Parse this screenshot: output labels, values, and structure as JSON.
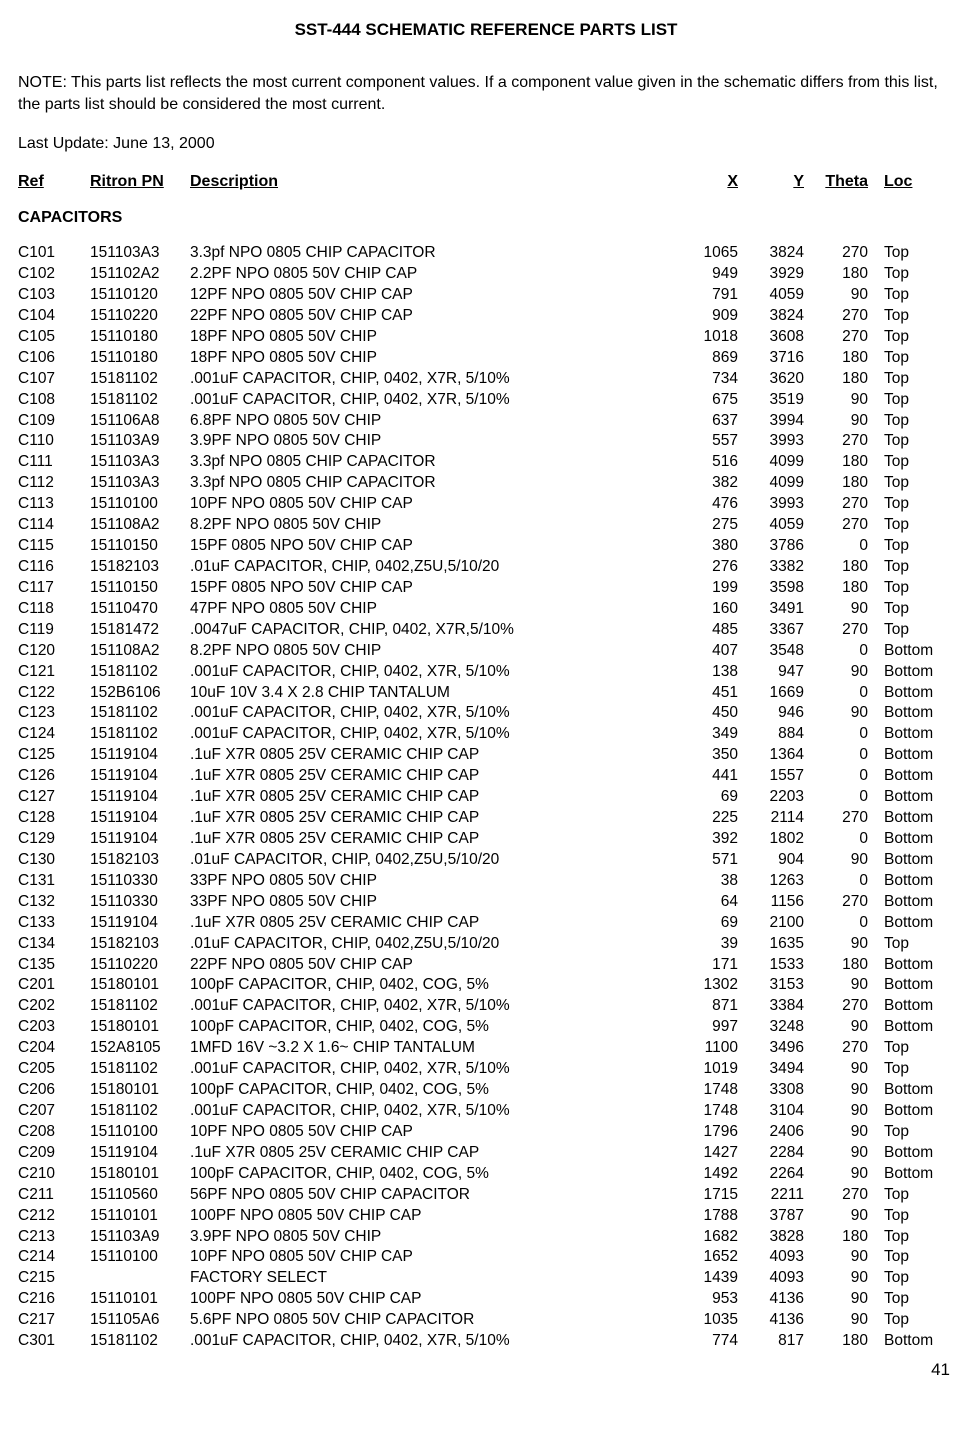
{
  "title": "SST-444 SCHEMATIC REFERENCE PARTS LIST",
  "note": "NOTE:  This parts list reflects the most current component values.  If a component value given in the schematic differs from this list, the parts list should be considered the most current.",
  "last_update": "Last Update: June 13, 2000",
  "headers": {
    "ref": "Ref",
    "pn": "Ritron PN",
    "desc": "Description",
    "x": "X",
    "y": "Y",
    "theta": "Theta",
    "loc": "Loc"
  },
  "section": "CAPACITORS",
  "page_number": "41",
  "rows": [
    {
      "ref": "C101",
      "pn": "151103A3",
      "desc": "3.3pf NPO 0805 CHIP CAPACITOR",
      "x": "1065",
      "y": "3824",
      "theta": "270",
      "loc": "Top"
    },
    {
      "ref": "C102",
      "pn": "151102A2",
      "desc": "2.2PF NPO 0805 50V CHIP CAP",
      "x": "949",
      "y": "3929",
      "theta": "180",
      "loc": "Top"
    },
    {
      "ref": "C103",
      "pn": "15110120",
      "desc": "12PF NPO 0805 50V CHIP CAP",
      "x": "791",
      "y": "4059",
      "theta": "90",
      "loc": "Top"
    },
    {
      "ref": "C104",
      "pn": "15110220",
      "desc": "22PF NPO 0805 50V CHIP CAP",
      "x": "909",
      "y": "3824",
      "theta": "270",
      "loc": "Top"
    },
    {
      "ref": "C105",
      "pn": "15110180",
      "desc": "18PF NPO 0805 50V CHIP",
      "x": "1018",
      "y": "3608",
      "theta": "270",
      "loc": "Top"
    },
    {
      "ref": "C106",
      "pn": "15110180",
      "desc": "18PF NPO 0805 50V CHIP",
      "x": "869",
      "y": "3716",
      "theta": "180",
      "loc": "Top"
    },
    {
      "ref": "C107",
      "pn": "15181102",
      "desc": ".001uF CAPACITOR, CHIP, 0402, X7R, 5/10%",
      "x": "734",
      "y": "3620",
      "theta": "180",
      "loc": "Top"
    },
    {
      "ref": "C108",
      "pn": "15181102",
      "desc": ".001uF CAPACITOR, CHIP, 0402, X7R, 5/10%",
      "x": "675",
      "y": "3519",
      "theta": "90",
      "loc": "Top"
    },
    {
      "ref": "C109",
      "pn": "151106A8",
      "desc": "6.8PF NPO 0805 50V CHIP",
      "x": "637",
      "y": "3994",
      "theta": "90",
      "loc": "Top"
    },
    {
      "ref": "C110",
      "pn": "151103A9",
      "desc": "3.9PF NPO 0805 50V CHIP",
      "x": "557",
      "y": "3993",
      "theta": "270",
      "loc": "Top"
    },
    {
      "ref": "C111",
      "pn": "151103A3",
      "desc": "3.3pf NPO 0805 CHIP CAPACITOR",
      "x": "516",
      "y": "4099",
      "theta": "180",
      "loc": "Top"
    },
    {
      "ref": "C112",
      "pn": "151103A3",
      "desc": "3.3pf NPO 0805 CHIP CAPACITOR",
      "x": "382",
      "y": "4099",
      "theta": "180",
      "loc": "Top"
    },
    {
      "ref": "C113",
      "pn": "15110100",
      "desc": "10PF NPO 0805 50V CHIP CAP",
      "x": "476",
      "y": "3993",
      "theta": "270",
      "loc": "Top"
    },
    {
      "ref": "C114",
      "pn": "151108A2",
      "desc": "8.2PF NPO 0805 50V CHIP",
      "x": "275",
      "y": "4059",
      "theta": "270",
      "loc": "Top"
    },
    {
      "ref": "C115",
      "pn": "15110150",
      "desc": "15PF 0805 NPO 50V CHIP CAP",
      "x": "380",
      "y": "3786",
      "theta": "0",
      "loc": "Top"
    },
    {
      "ref": "C116",
      "pn": "15182103",
      "desc": ".01uF CAPACITOR, CHIP, 0402,Z5U,5/10/20",
      "x": "276",
      "y": "3382",
      "theta": "180",
      "loc": "Top"
    },
    {
      "ref": "C117",
      "pn": "15110150",
      "desc": "15PF 0805 NPO 50V CHIP CAP",
      "x": "199",
      "y": "3598",
      "theta": "180",
      "loc": "Top"
    },
    {
      "ref": "C118",
      "pn": "15110470",
      "desc": "47PF NPO 0805 50V CHIP",
      "x": "160",
      "y": "3491",
      "theta": "90",
      "loc": "Top"
    },
    {
      "ref": "C119",
      "pn": "15181472",
      "desc": ".0047uF CAPACITOR, CHIP, 0402, X7R,5/10%",
      "x": "485",
      "y": "3367",
      "theta": "270",
      "loc": "Top"
    },
    {
      "ref": "C120",
      "pn": "151108A2",
      "desc": "8.2PF NPO 0805 50V CHIP",
      "x": "407",
      "y": "3548",
      "theta": "0",
      "loc": "Bottom"
    },
    {
      "ref": "C121",
      "pn": "15181102",
      "desc": ".001uF CAPACITOR, CHIP, 0402, X7R, 5/10%",
      "x": "138",
      "y": "947",
      "theta": "90",
      "loc": "Bottom"
    },
    {
      "ref": "C122",
      "pn": "152B6106",
      "desc": "10uF 10V 3.4 X 2.8 CHIP TANTALUM",
      "x": "451",
      "y": "1669",
      "theta": "0",
      "loc": "Bottom"
    },
    {
      "ref": "C123",
      "pn": "15181102",
      "desc": ".001uF CAPACITOR, CHIP, 0402, X7R, 5/10%",
      "x": "450",
      "y": "946",
      "theta": "90",
      "loc": "Bottom"
    },
    {
      "ref": "C124",
      "pn": "15181102",
      "desc": ".001uF CAPACITOR, CHIP, 0402, X7R, 5/10%",
      "x": "349",
      "y": "884",
      "theta": "0",
      "loc": "Bottom"
    },
    {
      "ref": "C125",
      "pn": "15119104",
      "desc": ".1uF X7R 0805 25V CERAMIC CHIP CAP",
      "x": "350",
      "y": "1364",
      "theta": "0",
      "loc": "Bottom"
    },
    {
      "ref": "C126",
      "pn": "15119104",
      "desc": ".1uF X7R 0805 25V CERAMIC CHIP CAP",
      "x": "441",
      "y": "1557",
      "theta": "0",
      "loc": "Bottom"
    },
    {
      "ref": "C127",
      "pn": "15119104",
      "desc": ".1uF X7R 0805 25V CERAMIC CHIP CAP",
      "x": "69",
      "y": "2203",
      "theta": "0",
      "loc": "Bottom"
    },
    {
      "ref": "C128",
      "pn": "15119104",
      "desc": ".1uF X7R 0805 25V CERAMIC CHIP CAP",
      "x": "225",
      "y": "2114",
      "theta": "270",
      "loc": "Bottom"
    },
    {
      "ref": "C129",
      "pn": "15119104",
      "desc": ".1uF X7R 0805 25V CERAMIC CHIP CAP",
      "x": "392",
      "y": "1802",
      "theta": "0",
      "loc": "Bottom"
    },
    {
      "ref": "C130",
      "pn": "15182103",
      "desc": ".01uF CAPACITOR, CHIP, 0402,Z5U,5/10/20",
      "x": "571",
      "y": "904",
      "theta": "90",
      "loc": "Bottom"
    },
    {
      "ref": "C131",
      "pn": "15110330",
      "desc": "33PF NPO 0805 50V CHIP",
      "x": "38",
      "y": "1263",
      "theta": "0",
      "loc": "Bottom"
    },
    {
      "ref": "C132",
      "pn": "15110330",
      "desc": "33PF NPO 0805 50V CHIP",
      "x": "64",
      "y": "1156",
      "theta": "270",
      "loc": "Bottom"
    },
    {
      "ref": "C133",
      "pn": "15119104",
      "desc": ".1uF X7R 0805 25V CERAMIC CHIP CAP",
      "x": "69",
      "y": "2100",
      "theta": "0",
      "loc": "Bottom"
    },
    {
      "ref": "C134",
      "pn": "15182103",
      "desc": ".01uF CAPACITOR, CHIP, 0402,Z5U,5/10/20",
      "x": "39",
      "y": "1635",
      "theta": "90",
      "loc": "Top"
    },
    {
      "ref": "C135",
      "pn": "15110220",
      "desc": "22PF NPO 0805 50V CHIP CAP",
      "x": "171",
      "y": "1533",
      "theta": "180",
      "loc": "Bottom"
    },
    {
      "ref": "C201",
      "pn": "15180101",
      "desc": "100pF CAPACITOR, CHIP, 0402, COG, 5%",
      "x": "1302",
      "y": "3153",
      "theta": "90",
      "loc": "Bottom"
    },
    {
      "ref": "C202",
      "pn": "15181102",
      "desc": ".001uF CAPACITOR, CHIP, 0402, X7R, 5/10%",
      "x": "871",
      "y": "3384",
      "theta": "270",
      "loc": "Bottom"
    },
    {
      "ref": "C203",
      "pn": "15180101",
      "desc": "100pF CAPACITOR, CHIP, 0402, COG, 5%",
      "x": "997",
      "y": "3248",
      "theta": "90",
      "loc": "Bottom"
    },
    {
      "ref": "C204",
      "pn": "152A8105",
      "desc": "1MFD 16V ~3.2 X 1.6~ CHIP TANTALUM",
      "x": "1100",
      "y": "3496",
      "theta": "270",
      "loc": "Top"
    },
    {
      "ref": "C205",
      "pn": "15181102",
      "desc": ".001uF CAPACITOR, CHIP, 0402, X7R, 5/10%",
      "x": "1019",
      "y": "3494",
      "theta": "90",
      "loc": "Top"
    },
    {
      "ref": "C206",
      "pn": "15180101",
      "desc": "100pF CAPACITOR, CHIP, 0402, COG, 5%",
      "x": "1748",
      "y": "3308",
      "theta": "90",
      "loc": "Bottom"
    },
    {
      "ref": "C207",
      "pn": "15181102",
      "desc": ".001uF CAPACITOR, CHIP, 0402, X7R, 5/10%",
      "x": "1748",
      "y": "3104",
      "theta": "90",
      "loc": "Bottom"
    },
    {
      "ref": "C208",
      "pn": "15110100",
      "desc": "10PF NPO 0805 50V CHIP CAP",
      "x": "1796",
      "y": "2406",
      "theta": "90",
      "loc": "Top"
    },
    {
      "ref": "C209",
      "pn": "15119104",
      "desc": ".1uF X7R 0805 25V CERAMIC CHIP CAP",
      "x": "1427",
      "y": "2284",
      "theta": "90",
      "loc": "Bottom"
    },
    {
      "ref": "C210",
      "pn": "15180101",
      "desc": "100pF CAPACITOR, CHIP, 0402, COG, 5%",
      "x": "1492",
      "y": "2264",
      "theta": "90",
      "loc": "Bottom"
    },
    {
      "ref": "C211",
      "pn": "15110560",
      "desc": "56PF NPO 0805 50V CHIP CAPACITOR",
      "x": "1715",
      "y": "2211",
      "theta": "270",
      "loc": "Top"
    },
    {
      "ref": "C212",
      "pn": "15110101",
      "desc": "100PF NPO 0805 50V CHIP CAP",
      "x": "1788",
      "y": "3787",
      "theta": "90",
      "loc": "Top"
    },
    {
      "ref": "C213",
      "pn": "151103A9",
      "desc": "3.9PF NPO 0805 50V CHIP",
      "x": "1682",
      "y": "3828",
      "theta": "180",
      "loc": "Top"
    },
    {
      "ref": "C214",
      "pn": "15110100",
      "desc": "10PF NPO 0805 50V CHIP CAP",
      "x": "1652",
      "y": "4093",
      "theta": "90",
      "loc": "Top"
    },
    {
      "ref": "C215",
      "pn": "",
      "desc": "FACTORY SELECT",
      "x": "1439",
      "y": "4093",
      "theta": "90",
      "loc": "Top"
    },
    {
      "ref": "C216",
      "pn": "15110101",
      "desc": "100PF NPO 0805 50V CHIP CAP",
      "x": "953",
      "y": "4136",
      "theta": "90",
      "loc": "Top"
    },
    {
      "ref": "C217",
      "pn": "151105A6",
      "desc": "5.6PF NPO 0805 50V CHIP CAPACITOR",
      "x": "1035",
      "y": "4136",
      "theta": "90",
      "loc": "Top"
    },
    {
      "ref": "C301",
      "pn": "15181102",
      "desc": ".001uF CAPACITOR, CHIP, 0402, X7R, 5/10%",
      "x": "774",
      "y": "817",
      "theta": "180",
      "loc": "Bottom"
    }
  ]
}
